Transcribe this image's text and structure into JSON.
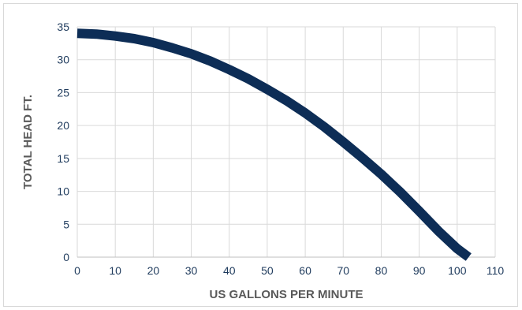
{
  "chart_data": {
    "type": "line",
    "title": "",
    "xlabel": "US GALLONS PER MINUTE",
    "ylabel": "TOTAL HEAD FT.",
    "xlim": [
      0,
      110
    ],
    "ylim": [
      0,
      35
    ],
    "xticks": [
      0,
      10,
      20,
      30,
      40,
      50,
      60,
      70,
      80,
      90,
      100,
      110
    ],
    "yticks": [
      0,
      5,
      10,
      15,
      20,
      25,
      30,
      35
    ],
    "grid": true,
    "legend": "none",
    "series": [
      {
        "color": "#0d2d56",
        "x": [
          0,
          5,
          10,
          15,
          20,
          25,
          30,
          35,
          40,
          45,
          50,
          55,
          60,
          65,
          70,
          75,
          80,
          85,
          90,
          95,
          100,
          103
        ],
        "y": [
          34,
          33.9,
          33.6,
          33.2,
          32.6,
          31.8,
          30.9,
          29.8,
          28.5,
          27.1,
          25.5,
          23.8,
          21.9,
          19.8,
          17.5,
          15.1,
          12.6,
          9.9,
          7.0,
          4.0,
          1.3,
          0
        ]
      }
    ]
  }
}
